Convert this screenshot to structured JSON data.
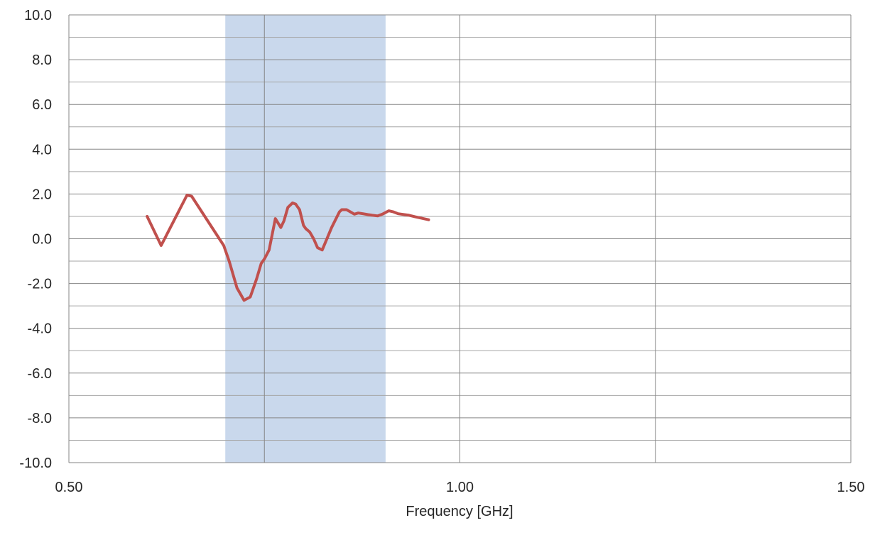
{
  "chart_data": {
    "type": "line",
    "title": "",
    "xlabel": "Frequency [GHz]",
    "ylabel": "",
    "xlim": [
      0.5,
      1.5
    ],
    "ylim": [
      -10,
      10
    ],
    "x_ticks": [
      "0.50",
      "1.00",
      "1.50"
    ],
    "y_ticks": [
      "-10.0",
      "-8.0",
      "-6.0",
      "-4.0",
      "-2.0",
      "0.0",
      "2.0",
      "4.0",
      "6.0",
      "8.0",
      "10.0"
    ],
    "grid": true,
    "legend": "none",
    "shaded_band": {
      "x_start": 0.7,
      "x_end": 0.905,
      "color": "#c9d8ec"
    },
    "series": [
      {
        "color": "#c0504d",
        "x": [
          0.6,
          0.618,
          0.651,
          0.657,
          0.698,
          0.705,
          0.715,
          0.724,
          0.732,
          0.74,
          0.746,
          0.75,
          0.756,
          0.764,
          0.771,
          0.775,
          0.78,
          0.786,
          0.79,
          0.795,
          0.8,
          0.803,
          0.808,
          0.813,
          0.818,
          0.824,
          0.836,
          0.846,
          0.849,
          0.855,
          0.86,
          0.865,
          0.87,
          0.876,
          0.882,
          0.888,
          0.895,
          0.901,
          0.909,
          0.915,
          0.921,
          0.935,
          0.943,
          0.96
        ],
        "y": [
          1.0,
          -0.3,
          1.95,
          1.9,
          -0.3,
          -1.0,
          -2.2,
          -2.75,
          -2.6,
          -1.8,
          -1.1,
          -0.9,
          -0.5,
          0.9,
          0.5,
          0.8,
          1.4,
          1.6,
          1.55,
          1.3,
          0.6,
          0.45,
          0.3,
          0.0,
          -0.4,
          -0.5,
          0.5,
          1.2,
          1.3,
          1.3,
          1.2,
          1.1,
          1.15,
          1.12,
          1.08,
          1.05,
          1.02,
          1.1,
          1.25,
          1.2,
          1.12,
          1.05,
          0.98,
          0.85
        ]
      }
    ]
  }
}
